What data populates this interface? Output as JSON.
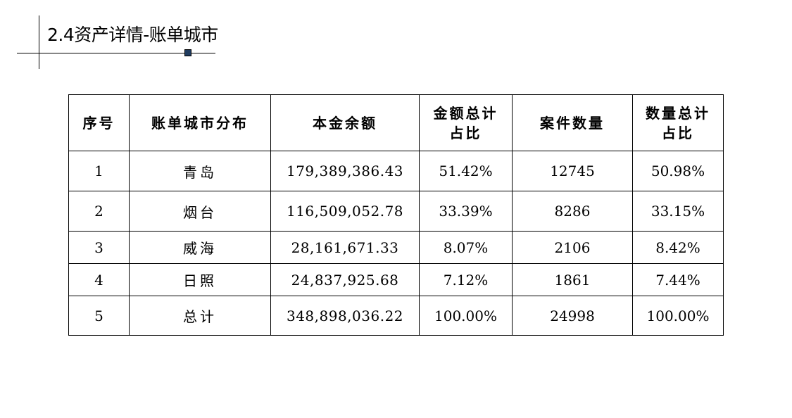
{
  "section_title": "2.4资产详情-账单城市",
  "table": {
    "headers": [
      "序号",
      "账单城市分布",
      "本金余额",
      "金额总计占比",
      "案件数量",
      "数量总计占比"
    ],
    "rows": [
      [
        "1",
        "青岛",
        "179,389,386.43",
        "51.42%",
        "12745",
        "50.98%"
      ],
      [
        "2",
        "烟台",
        "116,509,052.78",
        "33.39%",
        "8286",
        "33.15%"
      ],
      [
        "3",
        "威海",
        "28,161,671.33",
        "8.07%",
        "2106",
        "8.42%"
      ],
      [
        "4",
        "日照",
        "24,837,925.68",
        "7.12%",
        "1861",
        "7.44%"
      ],
      [
        "5",
        "总计",
        "348,898,036.22",
        "100.00%",
        "24998",
        "100.00%"
      ]
    ]
  }
}
